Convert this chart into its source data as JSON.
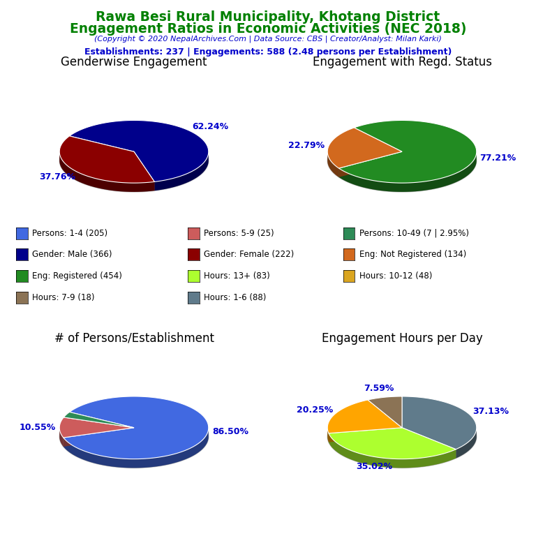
{
  "title_line1": "Rawa Besi Rural Municipality, Khotang District",
  "title_line2": "Engagement Ratios in Economic Activities (NEC 2018)",
  "subtitle": "(Copyright © 2020 NepalArchives.Com | Data Source: CBS | Creator/Analyst: Milan Karki)",
  "stats_line": "Establishments: 237 | Engagements: 588 (2.48 persons per Establishment)",
  "title_color": "#008000",
  "subtitle_color": "#0000cc",
  "stats_color": "#0000cc",
  "pie1_title": "Genderwise Engagement",
  "pie1_values": [
    62.24,
    37.76
  ],
  "pie1_colors": [
    "#00008B",
    "#8B0000"
  ],
  "pie1_labels": [
    "62.24%",
    "37.76%"
  ],
  "pie1_startangle": 150,
  "pie2_title": "Engagement with Regd. Status",
  "pie2_values": [
    77.21,
    22.79
  ],
  "pie2_colors": [
    "#228B22",
    "#D2691E"
  ],
  "pie2_labels": [
    "77.21%",
    "22.79%"
  ],
  "pie2_startangle": 130,
  "pie3_title": "# of Persons/Establishment",
  "pie3_values": [
    86.5,
    10.55,
    2.95
  ],
  "pie3_colors": [
    "#4169E1",
    "#CD5C5C",
    "#2E8B57"
  ],
  "pie3_labels": [
    "86.50%",
    "10.55%",
    ""
  ],
  "pie3_startangle": 150,
  "pie4_title": "Engagement Hours per Day",
  "pie4_values": [
    37.13,
    35.02,
    20.25,
    7.59
  ],
  "pie4_colors": [
    "#607B8B",
    "#ADFF2F",
    "#FFA500",
    "#8B7355"
  ],
  "pie4_labels": [
    "37.13%",
    "35.02%",
    "20.25%",
    "7.59%"
  ],
  "pie4_startangle": 90,
  "legend_items": [
    {
      "label": "Persons: 1-4 (205)",
      "color": "#4169E1"
    },
    {
      "label": "Persons: 5-9 (25)",
      "color": "#CD5C5C"
    },
    {
      "label": "Persons: 10-49 (7 | 2.95%)",
      "color": "#2E8B57"
    },
    {
      "label": "Gender: Male (366)",
      "color": "#00008B"
    },
    {
      "label": "Gender: Female (222)",
      "color": "#8B0000"
    },
    {
      "label": "Eng: Not Registered (134)",
      "color": "#D2691E"
    },
    {
      "label": "Eng: Registered (454)",
      "color": "#228B22"
    },
    {
      "label": "Hours: 13+ (83)",
      "color": "#ADFF2F"
    },
    {
      "label": "Hours: 10-12 (48)",
      "color": "#DAA520"
    },
    {
      "label": "Hours: 7-9 (18)",
      "color": "#8B7355"
    },
    {
      "label": "Hours: 1-6 (88)",
      "color": "#607B8B"
    }
  ],
  "pct_color": "#0000cc",
  "label_fontsize": 9,
  "pie_title_fontsize": 12
}
